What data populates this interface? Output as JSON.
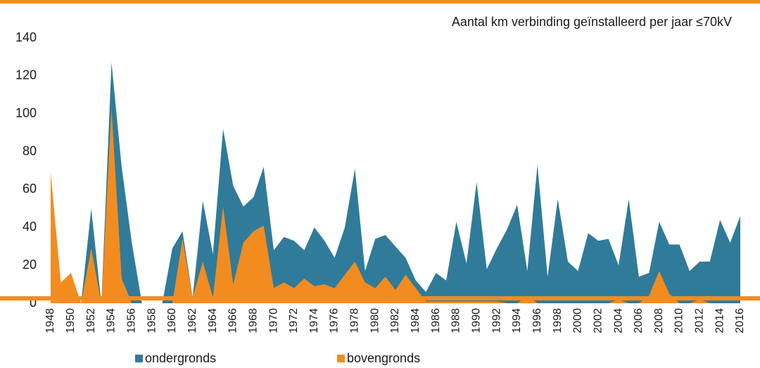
{
  "chart_data": {
    "type": "area",
    "title": "Aantal km verbinding geïnstalleerd per jaar ≤70kV",
    "categories": [
      "1948",
      null,
      "1950",
      null,
      "1952",
      null,
      "1954",
      null,
      "1956",
      null,
      "1958",
      null,
      "1960",
      null,
      "1962",
      null,
      "1964",
      null,
      "1966",
      null,
      "1968",
      null,
      "1970",
      null,
      "1972",
      null,
      "1974",
      null,
      "1976",
      null,
      "1978",
      null,
      "1980",
      null,
      "1982",
      null,
      "1984",
      null,
      "1986",
      null,
      "1988",
      null,
      "1990",
      null,
      "1992",
      null,
      "1994",
      null,
      "1996",
      null,
      "1998",
      null,
      "2000",
      null,
      "2002",
      null,
      "2004",
      null,
      "2006",
      null,
      "2008",
      null,
      "2010",
      null,
      "2012",
      null,
      "2014",
      null,
      "2016"
    ],
    "series": [
      {
        "name": "ondergronds",
        "color": "#307b9a",
        "values": [
          0,
          0,
          0,
          0,
          50,
          0,
          127,
          72,
          32,
          0,
          0,
          0,
          29,
          38,
          3,
          54,
          26,
          92,
          62,
          51,
          56,
          72,
          28,
          35,
          33,
          28,
          40,
          33,
          24,
          40,
          71,
          17,
          34,
          36,
          30,
          24,
          12,
          6,
          16,
          12,
          43,
          21,
          64,
          18,
          29,
          39,
          52,
          17,
          73,
          14,
          55,
          22,
          17,
          37,
          33,
          34,
          20,
          55,
          14,
          16,
          43,
          31,
          31,
          17,
          22,
          22,
          44,
          32,
          46
        ]
      },
      {
        "name": "bovengronds",
        "color": "#f28c1f",
        "values": [
          69,
          11,
          16,
          0,
          29,
          0,
          103,
          13,
          0,
          0,
          0,
          0,
          0,
          34,
          3,
          22,
          3,
          51,
          10,
          32,
          38,
          41,
          8,
          11,
          8,
          13,
          9,
          10,
          8,
          15,
          22,
          11,
          8,
          14,
          7,
          15,
          8,
          1,
          1,
          1,
          1,
          1,
          1,
          1,
          1,
          0,
          0,
          4,
          0,
          0,
          0,
          0,
          0,
          0,
          0,
          0,
          2,
          0,
          0,
          4,
          17,
          5,
          0,
          0,
          2,
          0,
          0,
          0,
          0
        ]
      }
    ],
    "ylim": [
      0,
      140
    ],
    "yticks": [
      0,
      20,
      40,
      60,
      80,
      100,
      120,
      140
    ]
  }
}
